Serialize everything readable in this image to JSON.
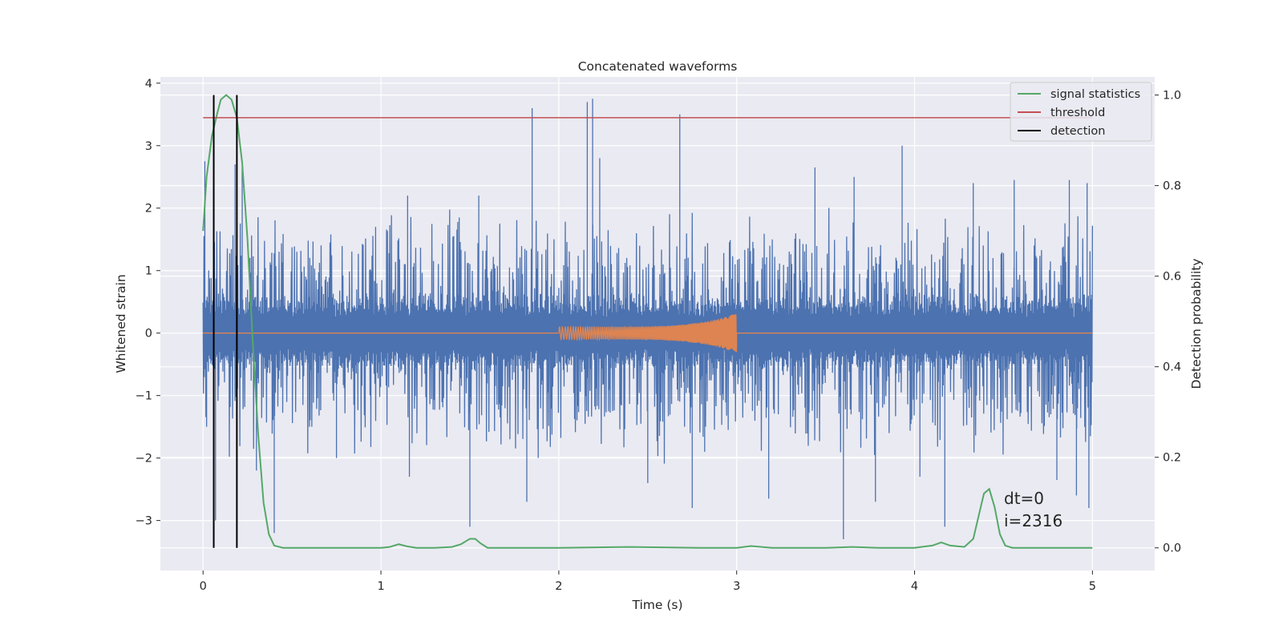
{
  "chart_data": {
    "type": "line",
    "title": "Concatenated waveforms",
    "xlabel": "Time (s)",
    "ylabel": "Whitened strain",
    "y2label": "Detection probability",
    "xlim": [
      -0.24,
      5.35
    ],
    "ylim": [
      -3.8,
      4.1
    ],
    "y2lim": [
      -0.05,
      1.04
    ],
    "xticks": [
      0,
      1,
      2,
      3,
      4,
      5
    ],
    "yticks": [
      -3,
      -2,
      -1,
      0,
      1,
      2,
      3,
      4
    ],
    "y2ticks": [
      0.0,
      0.2,
      0.4,
      0.6,
      0.8,
      1.0
    ],
    "grid": true,
    "legend_position": "top-right",
    "legend": [
      "signal statistics",
      "threshold",
      "detection"
    ],
    "series": [
      {
        "kind": "noise-strain",
        "axis": "left",
        "color": "#4c72b0",
        "x_range": [
          0,
          5
        ],
        "core_amplitude": 0.55,
        "peaks": [
          {
            "x": 0.01,
            "y": 2.75
          },
          {
            "x": 0.02,
            "y": -1.5
          },
          {
            "x": 0.07,
            "y": -3.0
          },
          {
            "x": 0.18,
            "y": 2.7
          },
          {
            "x": 0.22,
            "y": 2.65
          },
          {
            "x": 0.3,
            "y": -2.2
          },
          {
            "x": 0.4,
            "y": -3.2
          },
          {
            "x": 0.75,
            "y": -2.0
          },
          {
            "x": 0.97,
            "y": 1.7
          },
          {
            "x": 1.16,
            "y": -2.3
          },
          {
            "x": 1.15,
            "y": 2.2
          },
          {
            "x": 1.44,
            "y": 1.85
          },
          {
            "x": 1.5,
            "y": -3.1
          },
          {
            "x": 1.55,
            "y": 2.2
          },
          {
            "x": 1.82,
            "y": -2.7
          },
          {
            "x": 1.85,
            "y": 3.6
          },
          {
            "x": 2.16,
            "y": 3.7
          },
          {
            "x": 2.19,
            "y": 3.75
          },
          {
            "x": 2.23,
            "y": 2.8
          },
          {
            "x": 2.5,
            "y": -2.4
          },
          {
            "x": 2.68,
            "y": 3.5
          },
          {
            "x": 2.75,
            "y": -2.8
          },
          {
            "x": 2.82,
            "y": -1.9
          },
          {
            "x": 3.18,
            "y": -2.65
          },
          {
            "x": 3.44,
            "y": 2.65
          },
          {
            "x": 3.6,
            "y": -3.3
          },
          {
            "x": 3.66,
            "y": 2.5
          },
          {
            "x": 3.78,
            "y": -2.7
          },
          {
            "x": 3.93,
            "y": 3.0
          },
          {
            "x": 4.03,
            "y": -2.3
          },
          {
            "x": 4.17,
            "y": -3.1
          },
          {
            "x": 4.33,
            "y": 2.4
          },
          {
            "x": 4.56,
            "y": 2.45
          },
          {
            "x": 4.8,
            "y": -2.35
          },
          {
            "x": 4.87,
            "y": 2.45
          },
          {
            "x": 4.91,
            "y": -2.6
          },
          {
            "x": 4.97,
            "y": 2.4
          },
          {
            "x": 4.98,
            "y": -2.8
          }
        ]
      },
      {
        "kind": "chirp",
        "axis": "left",
        "color": "#dd8452",
        "x_range": [
          2.0,
          3.0
        ],
        "amplitude_start": 0.1,
        "amplitude_end": 0.32
      },
      {
        "name": "signal statistics",
        "axis": "right",
        "color": "#55a868",
        "x": [
          0.0,
          0.02,
          0.05,
          0.08,
          0.1,
          0.13,
          0.16,
          0.19,
          0.22,
          0.25,
          0.28,
          0.31,
          0.34,
          0.37,
          0.4,
          0.45,
          0.6,
          0.9,
          1.0,
          1.05,
          1.1,
          1.15,
          1.2,
          1.3,
          1.4,
          1.45,
          1.5,
          1.53,
          1.56,
          1.6,
          1.7,
          2.0,
          2.4,
          2.8,
          3.0,
          3.08,
          3.2,
          3.5,
          3.65,
          3.8,
          4.0,
          4.1,
          4.15,
          4.2,
          4.28,
          4.33,
          4.36,
          4.39,
          4.42,
          4.45,
          4.48,
          4.51,
          4.55,
          4.65,
          5.0
        ],
        "values": [
          0.7,
          0.82,
          0.91,
          0.96,
          0.99,
          1.0,
          0.99,
          0.95,
          0.85,
          0.68,
          0.45,
          0.25,
          0.1,
          0.03,
          0.005,
          0.0,
          0.0,
          0.0,
          0.0,
          0.002,
          0.008,
          0.003,
          0.0,
          0.0,
          0.002,
          0.008,
          0.02,
          0.02,
          0.01,
          0.0,
          0.0,
          0.0,
          0.002,
          0.0,
          0.0,
          0.004,
          0.0,
          0.0,
          0.002,
          0.0,
          0.0,
          0.005,
          0.012,
          0.005,
          0.002,
          0.02,
          0.07,
          0.12,
          0.13,
          0.09,
          0.03,
          0.005,
          0.0,
          0.0,
          0.0
        ]
      },
      {
        "name": "threshold",
        "axis": "right",
        "color": "#c44e52",
        "x": [
          0,
          5
        ],
        "values": [
          0.95,
          0.95
        ]
      },
      {
        "name": "detection",
        "axis": "right",
        "color": "#000000",
        "x": [
          0.06,
          0.19
        ],
        "values": [
          1.0,
          1.0
        ]
      }
    ],
    "annotations": [
      "dt=0",
      "i=2316"
    ]
  }
}
